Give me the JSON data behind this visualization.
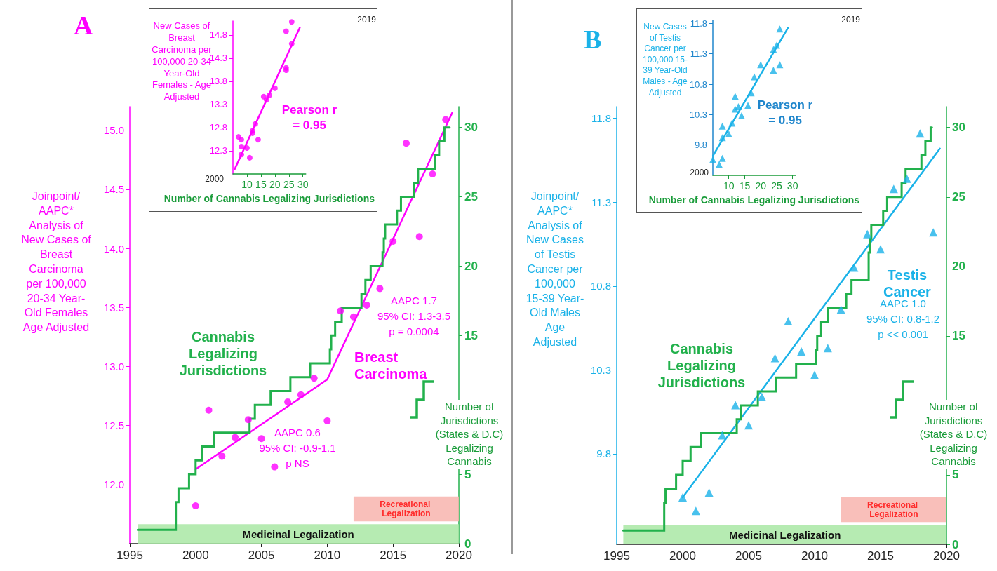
{
  "chart_data": [
    {
      "type": "scatter",
      "title": "A",
      "ylabel": "Joinpoint/ AAPC* Analysis of New Cases of Breast Carcinoma per 100,000 20-34 Year-Old Females Age Adjusted",
      "y2label": "Number of Jurisdictions (States & D.C) Legalizing Cannabis",
      "xlim": [
        1995,
        2020
      ],
      "xticks": [
        1995,
        2000,
        2005,
        2010,
        2015,
        2020
      ],
      "ylim": [
        11.5,
        15.2
      ],
      "yticks": [
        {
          "value": 12,
          "label": "12.0"
        },
        12.5,
        {
          "value": 13,
          "label": "13.0"
        },
        13.5,
        {
          "value": 14,
          "label": "14.0"
        },
        14.5,
        {
          "value": 15,
          "label": "15.0"
        }
      ],
      "y2lim": [
        0,
        31.5
      ],
      "y2ticks": [
        0,
        5,
        15,
        20,
        25,
        30
      ],
      "series": [
        {
          "type": "scatter",
          "color": "#ff00ff",
          "marker": "circle",
          "x": [
            2000,
            2001,
            2002,
            2003,
            2004,
            2005,
            2006,
            2007,
            2008,
            2009,
            2010,
            2011,
            2012,
            2013,
            2014,
            2015,
            2016,
            2017,
            2018,
            2019
          ],
          "values": [
            11.82,
            12.63,
            12.24,
            12.4,
            12.55,
            12.39,
            12.15,
            12.7,
            12.76,
            12.9,
            12.54,
            13.47,
            13.42,
            13.52,
            13.66,
            14.06,
            14.89,
            14.1,
            14.63,
            15.09
          ]
        },
        {
          "type": "line",
          "name": "Breast Carcinoma",
          "color": "#ff00ff",
          "marker": "none",
          "x": [
            2000,
            2010,
            2019.5
          ],
          "values": [
            12.13,
            12.89,
            15.15
          ]
        },
        {
          "type": "step",
          "name": "Cannabis Legalizing Jurisdictions",
          "axis": "y2",
          "color": "#22b14c",
          "marker": "none",
          "x": [
            1995.6,
            1998.5,
            1998.7,
            1999.5,
            2000,
            2000.5,
            2001.4,
            2004.1,
            2004.5,
            2005.7,
            2007.2,
            2008.7,
            2010.2,
            2010.3,
            2010.6,
            2011.1,
            2012.6,
            2012.9,
            2013.3,
            2014.2,
            2014.3,
            2014.4,
            2015.3,
            2015.6,
            2016.6,
            2016.9,
            2018.2,
            2018.5,
            2018.9,
            2019.3
          ],
          "values": [
            1,
            3,
            4,
            5,
            6,
            7,
            8,
            9,
            10,
            11,
            12,
            13,
            14,
            15,
            16,
            17,
            18,
            19,
            20,
            21,
            22,
            23,
            24,
            25,
            26,
            27,
            28,
            29,
            30,
            30
          ]
        }
      ],
      "annotations": [
        "AAPC 0.6\n95% CI: -0.9-1.1\np NS",
        "AAPC 1.7\n95% CI: 1.3-3.5\np = 0.0004"
      ],
      "bands": [
        {
          "axis": "x",
          "from": 1995.6,
          "to": 2020,
          "label": "Medicinal Legalization",
          "color": "#a9e8a4"
        },
        {
          "axis": "x",
          "from": 2012,
          "to": 2020,
          "label": "Recreational Legalization",
          "color": "#f8b4ae"
        }
      ]
    },
    {
      "type": "scatter",
      "xlabel": "Number of Cannabis Legalizing Jurisdictions",
      "ylabel": "New Cases of Breast Carcinoma per 100,000 20-34 Year-Old Females - Age Adjusted",
      "xlim": [
        5,
        31
      ],
      "xticks": [
        10,
        15,
        20,
        25,
        30
      ],
      "ylim": [
        11.8,
        15.1
      ],
      "yticks": [
        12.3,
        12.8,
        13.3,
        13.8,
        14.3,
        14.8
      ],
      "series": [
        {
          "type": "scatter",
          "color": "#ff00ff",
          "marker": "circle",
          "x": [
            7,
            8,
            8,
            8,
            10,
            11,
            12,
            12,
            13,
            14,
            16,
            17,
            18,
            20,
            24,
            24,
            24,
            26,
            26
          ],
          "values": [
            12.6,
            12.54,
            12.39,
            12.22,
            12.36,
            12.15,
            12.68,
            12.73,
            12.88,
            12.54,
            13.47,
            13.4,
            13.5,
            13.65,
            14.88,
            14.04,
            14.09,
            15.08,
            14.61
          ]
        },
        {
          "type": "line",
          "color": "#ff00ff",
          "marker": "none",
          "x": [
            5.6,
            28.9
          ],
          "values": [
            11.9,
            14.96
          ]
        }
      ],
      "annotations": [
        "2000",
        "2019",
        "Pearson r = 0.95"
      ]
    },
    {
      "type": "scatter",
      "title": "B",
      "ylabel": "Joinpoint/ AAPC* Analysis of New Cases of Testis Cancer per 100,000 15-39 Year-Old Males Age Adjusted",
      "y2label": "Number of Jurisdictions (States & D.C) Legalizing Cannabis",
      "xlim": [
        1995,
        2020
      ],
      "xticks": [
        1995,
        2000,
        2005,
        2010,
        2015,
        2020
      ],
      "ylim": [
        9.26,
        11.87
      ],
      "yticks": [
        9.8,
        10.3,
        10.8,
        11.3,
        11.8
      ],
      "y2lim": [
        0,
        31.5
      ],
      "y2ticks": [
        0,
        5,
        15,
        20,
        25,
        30
      ],
      "series": [
        {
          "type": "scatter",
          "color": "#1ab2e8",
          "marker": "triangle",
          "x": [
            2000,
            2001,
            2002,
            2003,
            2004,
            2005,
            2006,
            2007,
            2008,
            2009,
            2010,
            2011,
            2012,
            2013,
            2014,
            2015,
            2016,
            2017,
            2018,
            2019
          ],
          "values": [
            9.54,
            9.46,
            9.57,
            9.91,
            10.09,
            9.97,
            10.14,
            10.37,
            10.59,
            10.41,
            10.27,
            10.43,
            10.66,
            10.91,
            11.11,
            11.02,
            11.38,
            11.44,
            11.71,
            11.12
          ]
        },
        {
          "type": "line",
          "name": "Testis Cancer",
          "color": "#1ab2e8",
          "marker": "none",
          "x": [
            2000,
            2019.5
          ],
          "values": [
            9.54,
            11.62
          ]
        },
        {
          "type": "step",
          "name": "Cannabis Legalizing Jurisdictions",
          "axis": "y2",
          "color": "#22b14c",
          "marker": "none",
          "x": [
            1995.5,
            1998.6,
            1998.7,
            1999.5,
            2000,
            2000.6,
            2001.4,
            2004.1,
            2004.4,
            2005.7,
            2007.1,
            2008.6,
            2010.1,
            2010.2,
            2010.5,
            2011,
            2012.4,
            2012.8,
            2014.1,
            2014.1,
            2014.2,
            2014.3,
            2015.2,
            2015.5,
            2016.6,
            2016.9,
            2018.1,
            2018.4,
            2018.8,
            2018.9
          ],
          "values": [
            1,
            3,
            4,
            5,
            6,
            7,
            8,
            9,
            10,
            11,
            12,
            13,
            14,
            15,
            16,
            17,
            18,
            19,
            20,
            21,
            22,
            23,
            24,
            25,
            26,
            27,
            28,
            29,
            30,
            30
          ]
        }
      ],
      "annotations": [
        "AAPC 1.0\n95% CI: 0.8-1.2\np << 0.001"
      ],
      "bands": [
        {
          "axis": "x",
          "from": 1995.5,
          "to": 2020,
          "label": "Medicinal Legalization",
          "color": "#a9e8a4"
        },
        {
          "axis": "x",
          "from": 2012,
          "to": 2020,
          "label": "Recreational Legalization",
          "color": "#f8b4ae"
        }
      ]
    },
    {
      "type": "scatter",
      "xlabel": "Number of Cannabis Legalizing Jurisdictions",
      "ylabel": "New Cases of Testis Cancer per 100,000 15-39 Year-Old Males - Age Adjusted",
      "xlim": [
        5,
        30.9
      ],
      "xticks": [
        10,
        15,
        20,
        25,
        30
      ],
      "ylim": [
        9.3,
        11.85
      ],
      "yticks": [
        9.8,
        10.3,
        10.8,
        11.3,
        11.8
      ],
      "series": [
        {
          "type": "scatter",
          "color": "#1ab2e8",
          "marker": "triangle",
          "x": [
            5,
            7,
            8,
            8,
            8,
            10,
            11,
            12,
            12,
            13,
            14,
            16,
            17,
            18,
            20,
            24,
            24,
            25,
            26,
            26
          ],
          "values": [
            9.56,
            9.48,
            9.58,
            9.92,
            10.11,
            9.98,
            10.16,
            10.6,
            10.39,
            10.43,
            10.28,
            10.45,
            10.66,
            10.92,
            11.12,
            11.03,
            11.37,
            11.44,
            11.71,
            11.12
          ]
        },
        {
          "type": "line",
          "color": "#1ab2e8",
          "marker": "none",
          "x": [
            5,
            28.6
          ],
          "values": [
            9.62,
            11.73
          ]
        }
      ],
      "annotations": [
        "2000",
        "2019",
        "Pearson r = 0.95"
      ]
    }
  ]
}
